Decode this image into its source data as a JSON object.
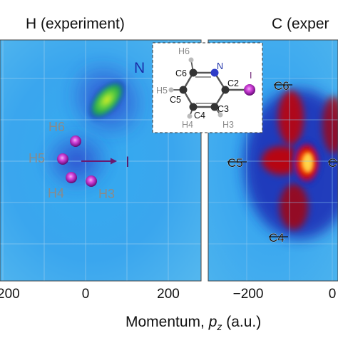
{
  "chart_data": [
    {
      "type": "heatmap",
      "title": "H (experiment)",
      "x_ticks": [
        "200",
        "0",
        "200"
      ],
      "xlim": [
        -240,
        280
      ],
      "blobs": [
        {
          "label": "N",
          "px": 75,
          "pz": 145,
          "peak": 0.78
        },
        {
          "label": "H6",
          "px": -55,
          "pz": 35,
          "peak": 0.92
        },
        {
          "label": "H5",
          "px": -80,
          "pz": 0,
          "peak": 0.92
        },
        {
          "label": "H4",
          "px": -45,
          "pz": -25,
          "peak": 0.92
        },
        {
          "label": "H3",
          "px": 25,
          "pz": -25,
          "peak": 0.92
        }
      ],
      "annotations": {
        "N": "N",
        "H6": "H6",
        "H5": "H5",
        "H4": "H4",
        "H3": "H3",
        "I": "I"
      },
      "colormap": [
        "#05149c",
        "#1e64e6",
        "#3cb4f5",
        "#5fd2dc",
        "#73e08c",
        "#28b428",
        "#e6e619",
        "#ff5a0a",
        "#c80000",
        "#8c0000"
      ]
    },
    {
      "type": "heatmap",
      "title": "C (exper",
      "x_ticks": [
        "−200",
        "0"
      ],
      "annotations": {
        "C6": "C6",
        "C5": "C5",
        "C4": "C4",
        "C_partial": "C"
      },
      "colormap": [
        "#05149c",
        "#1e64e6",
        "#3cb4f5",
        "#5fd2dc",
        "#73e08c",
        "#28b428",
        "#e6e619",
        "#ff5a0a",
        "#c80000",
        "#8c0000"
      ]
    }
  ],
  "axis": {
    "xlabel_prefix": "Momentum, ",
    "xlabel_var": "p",
    "xlabel_sub": "z",
    "xlabel_suffix": " (a.u.)"
  },
  "inset": {
    "atoms": {
      "H6": "H6",
      "C6": "C6",
      "N": "N",
      "H5": "H5",
      "C2": "C2",
      "I": "I",
      "C5": "C5",
      "C3": "C3",
      "C4": "C4",
      "H4": "H4",
      "H3": "H3"
    }
  }
}
